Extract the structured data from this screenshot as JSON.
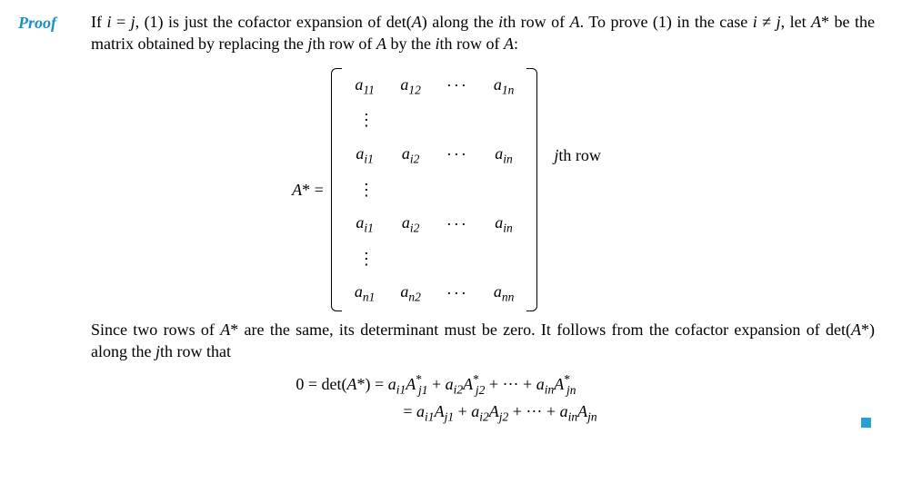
{
  "colors": {
    "proof_label": "#1a8fc9",
    "qed": "#2aa0d6",
    "text": "#000000",
    "bg": "#ffffff"
  },
  "proof_label": "Proof",
  "para1_html": "If <span class='ital'>i</span> = <span class='ital'>j</span>, (1) is just the cofactor expansion of det(<span class='ital'>A</span>) along the <span class='ital'>i</span>th row of <span class='ital'>A</span>. To prove (1) in the case <span class='ital'>i</span> &ne; <span class='ital'>j</span>, let <span class='ital'>A</span>* be the matrix obtained by replacing the <span class='ital'>j</span>th row of <span class='ital'>A</span> by the <span class='ital'>i</span>th row of <span class='ital'>A</span>:",
  "lhs_html": "<span class='ital'>A</span>* =",
  "rowlabel_html": "<span class='ital'>j</span>th row",
  "matrix": {
    "rows": [
      {
        "cells": [
          "a<span class='subs'>11</span>",
          "a<span class='subs'>12</span>",
          "···",
          "a<span class='subs'>1n</span>"
        ],
        "type": "data"
      },
      {
        "cells": [
          "⋮",
          "",
          "",
          ""
        ],
        "type": "vdots"
      },
      {
        "cells": [
          "a<span class='subs'>i1</span>",
          "a<span class='subs'>i2</span>",
          "···",
          "a<span class='subs'>in</span>"
        ],
        "type": "data",
        "label": true
      },
      {
        "cells": [
          "⋮",
          "",
          "",
          ""
        ],
        "type": "vdots"
      },
      {
        "cells": [
          "a<span class='subs'>i1</span>",
          "a<span class='subs'>i2</span>",
          "···",
          "a<span class='subs'>in</span>"
        ],
        "type": "data"
      },
      {
        "cells": [
          "⋮",
          "",
          "",
          ""
        ],
        "type": "vdots"
      },
      {
        "cells": [
          "a<span class='subs'>n1</span>",
          "a<span class='subs'>n2</span>",
          "···",
          "a<span class='subs'>nn</span>"
        ],
        "type": "data"
      }
    ]
  },
  "para2_html": "Since two rows of <span class='ital'>A</span>* are the same, its determinant must be zero. It follows from the cofactor expansion of det(<span class='ital'>A</span>*) along the <span class='ital'>j</span>th row that",
  "eq1_html": "0 = det(<span class='ital'>A</span>*) = <span class='ital'>a</span><span class='subs'>i1</span><span class='ital'>A</span><span class='sups'>*</span><span class='subs' style='margin-left:-4px'>j1</span> + <span class='ital'>a</span><span class='subs'>i2</span><span class='ital'>A</span><span class='sups'>*</span><span class='subs' style='margin-left:-4px'>j2</span> + ··· + <span class='ital'>a</span><span class='subs'>in</span><span class='ital'>A</span><span class='sups'>*</span><span class='subs' style='margin-left:-4px'>jn</span>",
  "eq2_html": "= <span class='ital'>a</span><span class='subs'>i1</span><span class='ital'>A</span><span class='subs'>j1</span> + <span class='ital'>a</span><span class='subs'>i2</span><span class='ital'>A</span><span class='subs'>j2</span> + ··· + <span class='ital'>a</span><span class='subs'>in</span><span class='ital'>A</span><span class='subs'>jn</span>"
}
